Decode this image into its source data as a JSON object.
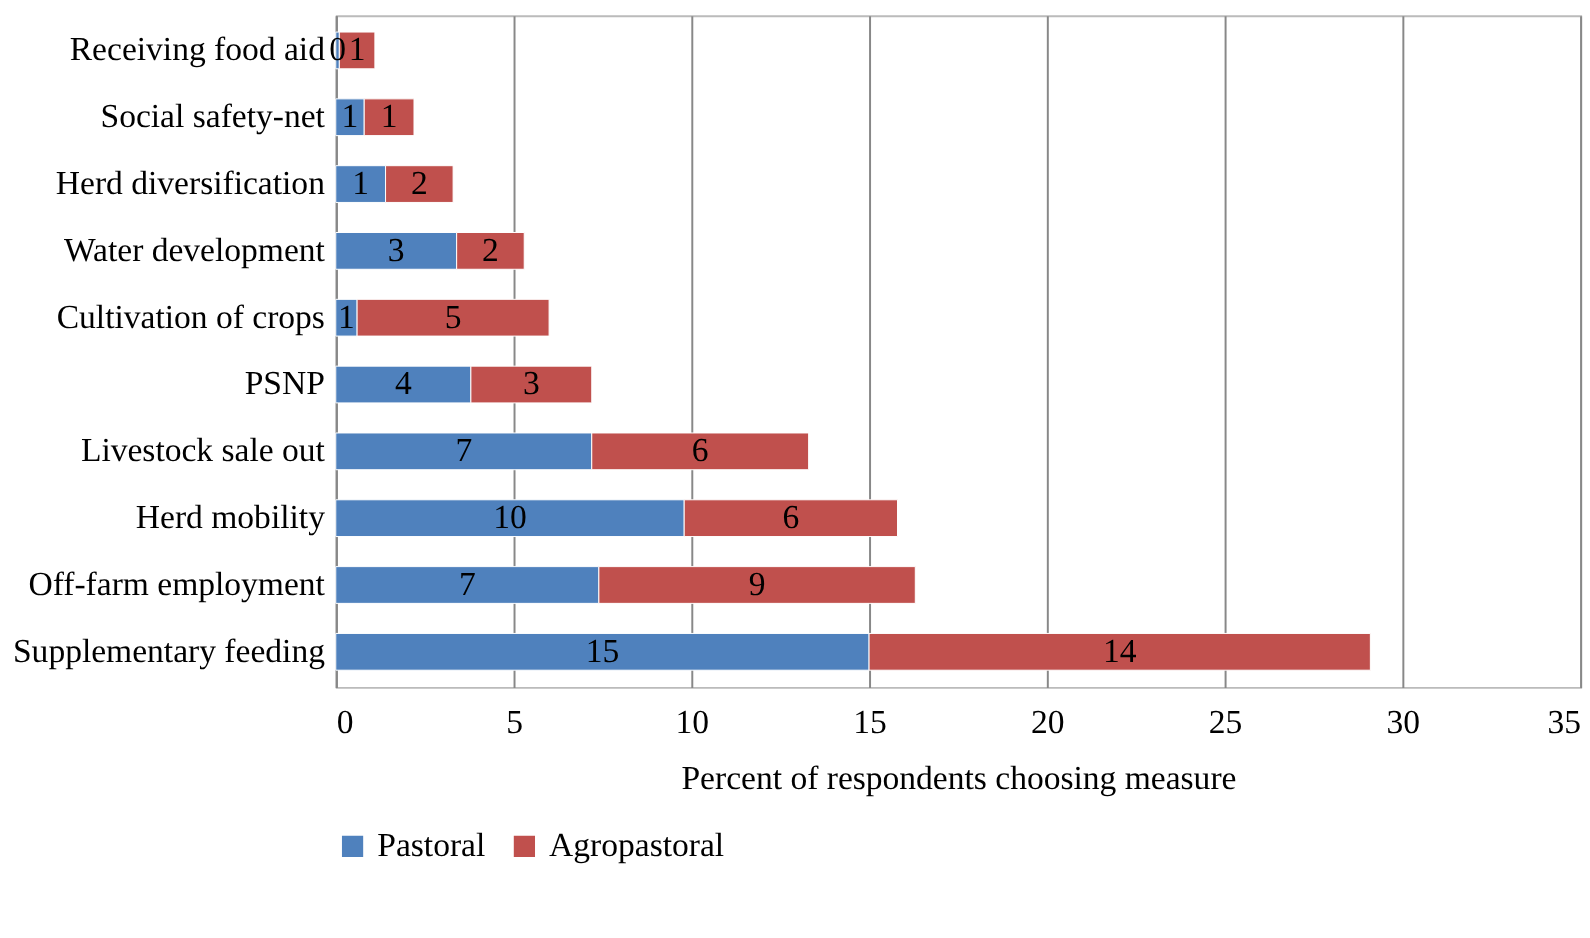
{
  "chart_data": {
    "type": "bar",
    "orientation": "horizontal",
    "stacked": true,
    "categories": [
      "Receiving food aid",
      "Social safety-net",
      "Herd diversification",
      "Water development",
      "Cultivation of crops",
      "PSNP",
      "Livestock sale out",
      "Herd mobility",
      "Off-farm employment",
      "Supplementary feeding"
    ],
    "series": [
      {
        "name": "Pastoral",
        "color": "#4f81bd",
        "values": [
          0.1,
          0.8,
          1.4,
          3.4,
          0.6,
          3.8,
          7.2,
          9.8,
          7.4,
          15.0
        ],
        "value_labels": [
          "0",
          "1",
          "1",
          "3",
          "1",
          "4",
          "7",
          "10",
          "7",
          "15"
        ]
      },
      {
        "name": "Agropastoral",
        "color": "#c0504d",
        "values": [
          1.0,
          1.4,
          1.9,
          1.9,
          5.4,
          3.4,
          6.1,
          6.0,
          8.9,
          14.1
        ],
        "value_labels": [
          "1",
          "1",
          "2",
          "2",
          "5",
          "3",
          "6",
          "6",
          "9",
          "14"
        ]
      }
    ],
    "xlabel": "Percent of respondents choosing measure",
    "xlim": [
      0,
      35
    ],
    "xticks": [
      0,
      5,
      10,
      15,
      20,
      25,
      30,
      35
    ],
    "grid": "x",
    "legend": "bottom"
  }
}
